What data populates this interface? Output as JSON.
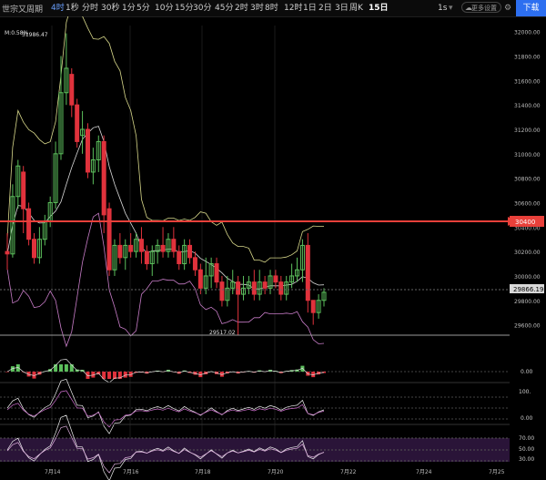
{
  "toolbar": {
    "title": "世宗又周期",
    "intervals": [
      "4时",
      "1秒",
      "分时",
      "30秒",
      "1分",
      "5分",
      "10分",
      "15分",
      "30分",
      "45分",
      "2时",
      "3时",
      "8时",
      "12时",
      "1日",
      "2日",
      "3日",
      "周K",
      "15日"
    ],
    "selected_interval": "4时",
    "seconds_label": "1s",
    "settings_label": "更多设置",
    "expand_label": "下载"
  },
  "chart": {
    "indicator_label": "M:0.58%",
    "price_axis": [
      "32000.00",
      "31800.00",
      "31600.00",
      "31400.00",
      "31200.00",
      "31000.00",
      "30800.00",
      "30600.00",
      "30400.00",
      "30200.00",
      "30000.00",
      "29800.00",
      "29600.00"
    ],
    "current_price": "29866.19",
    "max_label": "31986.47",
    "min_label": "29517.02",
    "alert_price": "30400",
    "date_axis": [
      "7月14",
      "7月16",
      "7月18",
      "7月20",
      "7月22",
      "7月24",
      "7月25"
    ],
    "macd_label": "0.00",
    "rsi_labels": [
      "100.",
      "0.00"
    ],
    "stoch_labels": [
      "70.00",
      "50.00",
      "30.00"
    ]
  },
  "colors": {
    "up": "#5cbf5c",
    "down": "#e0323c",
    "alert": "#e8403a",
    "accent": "#2d6ff0"
  },
  "chart_data": {
    "type": "candlestick",
    "x_dates": [
      "7月14",
      "7月16",
      "7月18",
      "7月20",
      "7月22",
      "7月24",
      "7月25"
    ],
    "ylim": [
      29500,
      32050
    ],
    "candles": [
      [
        30200,
        30180,
        30350,
        30050
      ],
      [
        30180,
        30650,
        30750,
        30150
      ],
      [
        30650,
        30900,
        30950,
        30550
      ],
      [
        30850,
        30550,
        30900,
        30350
      ],
      [
        30550,
        30300,
        30600,
        30250
      ],
      [
        30300,
        30150,
        30350,
        30100
      ],
      [
        30150,
        30300,
        30400,
        30100
      ],
      [
        30300,
        30450,
        30500,
        30250
      ],
      [
        30450,
        30600,
        30650,
        30400
      ],
      [
        30600,
        31000,
        31100,
        30550
      ],
      [
        31000,
        31500,
        31800,
        30950
      ],
      [
        31500,
        31700,
        31986,
        31400
      ],
      [
        31650,
        31400,
        31700,
        31300
      ],
      [
        31400,
        31100,
        31450,
        31050
      ],
      [
        31150,
        31200,
        31350,
        31000
      ],
      [
        31200,
        30850,
        31250,
        30800
      ],
      [
        30850,
        30950,
        31050,
        30750
      ],
      [
        30950,
        31100,
        31150,
        30850
      ],
      [
        31100,
        30500,
        31150,
        30350
      ],
      [
        30550,
        30050,
        30600,
        30000
      ],
      [
        30050,
        30250,
        30300,
        30000
      ],
      [
        30250,
        30150,
        30350,
        30100
      ],
      [
        30150,
        30250,
        30300,
        30050
      ],
      [
        30250,
        30200,
        30350,
        30150
      ],
      [
        30200,
        30300,
        30350,
        30150
      ],
      [
        30300,
        30200,
        30400,
        30100
      ],
      [
        30200,
        30100,
        30250,
        30050
      ],
      [
        30100,
        30200,
        30250,
        30000
      ],
      [
        30200,
        30250,
        30300,
        30100
      ],
      [
        30250,
        30200,
        30400,
        30150
      ],
      [
        30200,
        30300,
        30350,
        30150
      ],
      [
        30300,
        30200,
        30400,
        30150
      ],
      [
        30200,
        30100,
        30250,
        30050
      ],
      [
        30100,
        30250,
        30300,
        30050
      ],
      [
        30250,
        30150,
        30300,
        30100
      ],
      [
        30150,
        30050,
        30200,
        30000
      ],
      [
        30050,
        29900,
        30100,
        29850
      ],
      [
        29900,
        30000,
        30150,
        29850
      ],
      [
        30000,
        30100,
        30150,
        29900
      ],
      [
        30100,
        29950,
        30150,
        29900
      ],
      [
        29950,
        29800,
        30000,
        29750
      ],
      [
        29800,
        29900,
        30000,
        29750
      ],
      [
        29900,
        29950,
        30050,
        29850
      ],
      [
        29950,
        29850,
        30000,
        29517
      ],
      [
        29850,
        29900,
        30000,
        29800
      ],
      [
        29900,
        29950,
        30000,
        29850
      ],
      [
        29950,
        29850,
        30050,
        29800
      ],
      [
        29850,
        29950,
        30050,
        29800
      ],
      [
        29950,
        29900,
        30000,
        29850
      ],
      [
        29900,
        30000,
        30050,
        29850
      ],
      [
        30000,
        29950,
        30050,
        29900
      ],
      [
        29950,
        29850,
        30000,
        29800
      ],
      [
        29850,
        29950,
        30000,
        29800
      ],
      [
        29950,
        30000,
        30100,
        29900
      ],
      [
        30000,
        30050,
        30150,
        29950
      ],
      [
        30050,
        30250,
        30300,
        29950
      ],
      [
        30250,
        29800,
        30350,
        29700
      ],
      [
        29800,
        29700,
        29800,
        29600
      ],
      [
        29700,
        29800,
        29850,
        29650
      ],
      [
        29800,
        29866,
        29900,
        29750
      ]
    ]
  }
}
